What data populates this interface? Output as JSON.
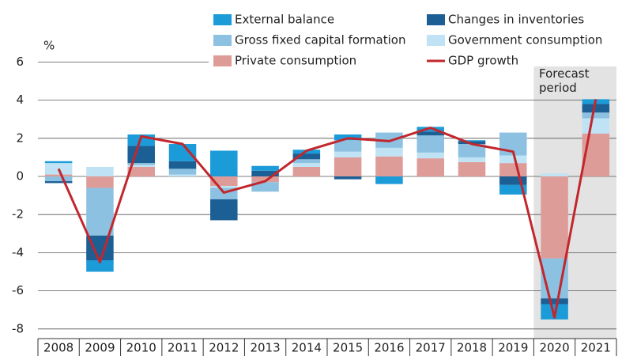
{
  "chart_data": {
    "type": "bar",
    "y_unit": "%",
    "annotation": "Forecast period",
    "categories": [
      "2008",
      "2009",
      "2010",
      "2011",
      "2012",
      "2013",
      "2014",
      "2015",
      "2016",
      "2017",
      "2018",
      "2019",
      "2020",
      "2021"
    ],
    "series": [
      {
        "name": "Private consumption",
        "color": "#de9c99",
        "values": [
          0.1,
          -0.6,
          0.5,
          0,
          -0.5,
          -0.3,
          0.5,
          1.0,
          1.05,
          0.95,
          0.75,
          0.7,
          -4.3,
          2.25
        ]
      },
      {
        "name": "Government consumption",
        "color": "#bfe3f4",
        "values": [
          0.6,
          0.5,
          0.1,
          0.1,
          -0.1,
          0,
          0.2,
          0.3,
          0.45,
          0.3,
          0.25,
          0.4,
          0.15,
          0.8
        ]
      },
      {
        "name": "Gross fixed capital formation",
        "color": "#8dc1e1",
        "values": [
          -0.25,
          -2.5,
          0.1,
          0.3,
          -0.6,
          -0.5,
          0.2,
          0.6,
          0.8,
          0.9,
          0.7,
          1.2,
          -2.1,
          0.3
        ]
      },
      {
        "name": "Changes in inventories",
        "color": "#1c5f95",
        "values": [
          -0.1,
          -1.3,
          0.9,
          0.4,
          -1.1,
          0.3,
          0.3,
          -0.15,
          0,
          0.2,
          0.15,
          -0.45,
          -0.3,
          0.45
        ]
      },
      {
        "name": "External balance",
        "color": "#1b9bd7",
        "values": [
          0.1,
          -0.6,
          0.6,
          0.9,
          1.35,
          0.25,
          0.2,
          0.3,
          -0.4,
          0.25,
          0.05,
          -0.5,
          -0.8,
          0.25
        ]
      },
      {
        "name": "GDP growth",
        "type": "line",
        "color": "#c1272d",
        "values": [
          0.4,
          -4.5,
          2.1,
          1.7,
          -0.85,
          -0.25,
          1.35,
          2.0,
          1.85,
          2.55,
          1.7,
          1.3,
          -7.4,
          4.05
        ]
      }
    ],
    "ylim": [
      -8.5,
      7
    ],
    "yticks": [
      -8,
      -6,
      -4,
      -2,
      0,
      2,
      4,
      6
    ],
    "grid": true
  }
}
